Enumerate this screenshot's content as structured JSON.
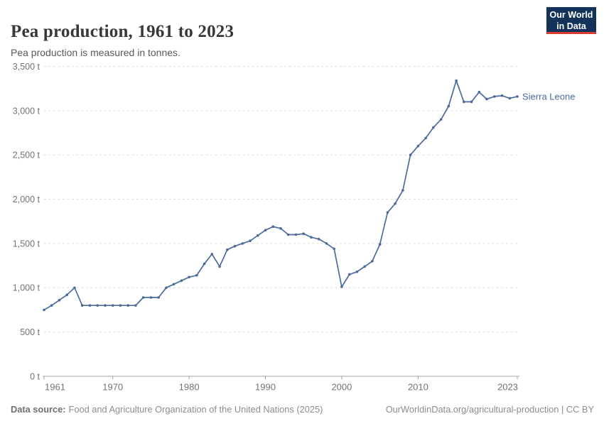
{
  "header": {
    "title": "Pea production, 1961 to 2023",
    "subtitle": "Pea production is measured in tonnes."
  },
  "logo": {
    "line1": "Our World",
    "line2": "in Data",
    "bg_color": "#13335b",
    "accent_color": "#dc3e32"
  },
  "chart_data": {
    "type": "line",
    "title": "Pea production, 1961 to 2023",
    "unit": "tonnes",
    "xlim": [
      1961,
      2023
    ],
    "ylim": [
      0,
      3500
    ],
    "x_ticks": [
      1961,
      1970,
      1980,
      1990,
      2000,
      2010,
      2023
    ],
    "x_tick_labels": [
      "1961",
      "1970",
      "1980",
      "1990",
      "2000",
      "2010",
      "2023"
    ],
    "y_ticks": [
      0,
      500,
      1000,
      1500,
      2000,
      2500,
      3000,
      3500
    ],
    "y_tick_labels": [
      "0 t",
      "500 t",
      "1,000 t",
      "1,500 t",
      "2,000 t",
      "2,500 t",
      "3,000 t",
      "3,500 t"
    ],
    "grid": "horizontal-dashed",
    "legend": "end-of-line-label",
    "series": [
      {
        "name": "Sierra Leone",
        "color": "#4c6a9c",
        "x": [
          1961,
          1962,
          1963,
          1964,
          1965,
          1966,
          1967,
          1968,
          1969,
          1970,
          1971,
          1972,
          1973,
          1974,
          1975,
          1976,
          1977,
          1978,
          1979,
          1980,
          1981,
          1982,
          1983,
          1984,
          1985,
          1986,
          1987,
          1988,
          1989,
          1990,
          1991,
          1992,
          1993,
          1994,
          1995,
          1996,
          1997,
          1998,
          1999,
          2000,
          2001,
          2002,
          2003,
          2004,
          2005,
          2006,
          2007,
          2008,
          2009,
          2010,
          2011,
          2012,
          2013,
          2014,
          2015,
          2016,
          2017,
          2018,
          2019,
          2020,
          2021,
          2022,
          2023
        ],
        "values": [
          750,
          800,
          860,
          920,
          1000,
          800,
          800,
          800,
          800,
          800,
          800,
          800,
          800,
          890,
          890,
          890,
          1000,
          1040,
          1080,
          1120,
          1140,
          1270,
          1380,
          1240,
          1430,
          1470,
          1500,
          1530,
          1590,
          1650,
          1690,
          1670,
          1600,
          1600,
          1610,
          1570,
          1550,
          1500,
          1440,
          1010,
          1150,
          1180,
          1240,
          1300,
          1490,
          1850,
          1950,
          2100,
          2500,
          2600,
          2690,
          2810,
          2900,
          3050,
          3340,
          3100,
          3100,
          3210,
          3130,
          3160,
          3170,
          3140,
          3160
        ]
      }
    ]
  },
  "footer": {
    "source_label": "Data source:",
    "source_text": "Food and Agriculture Organization of the United Nations (2025)",
    "right_text": "OurWorldinData.org/agricultural-production | CC BY"
  }
}
